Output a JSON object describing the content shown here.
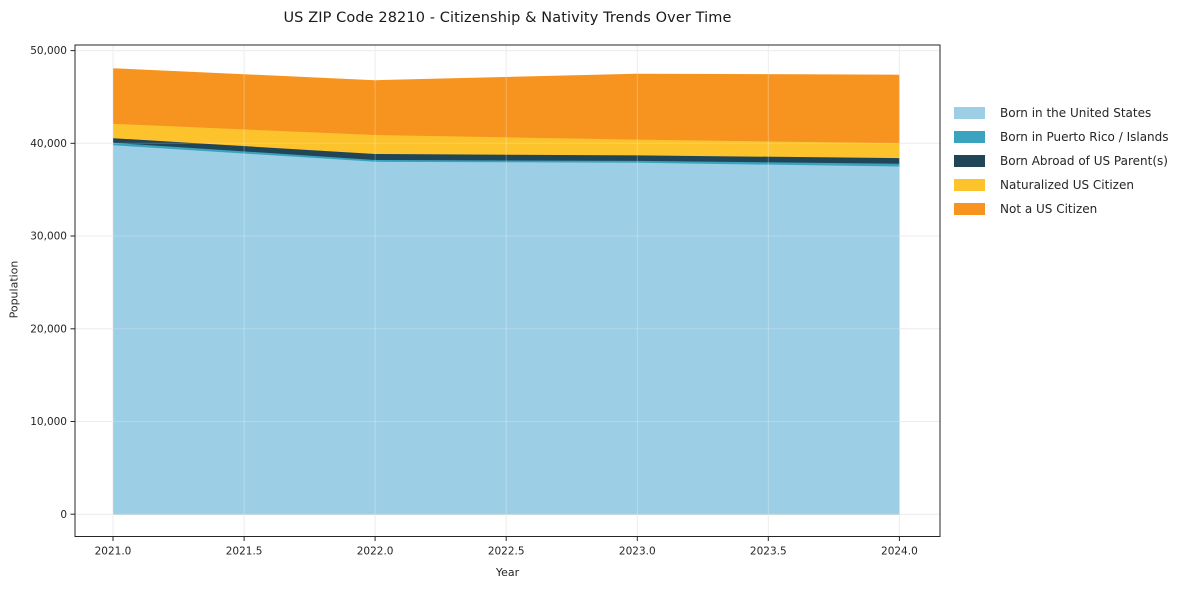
{
  "chart_data": {
    "type": "area",
    "stacked": true,
    "title": "US ZIP Code 28210 - Citizenship & Nativity Trends Over Time",
    "xlabel": "Year",
    "ylabel": "Population",
    "x": [
      2021,
      2022,
      2023,
      2024
    ],
    "series": [
      {
        "name": "Born in the United States",
        "color": "#9CCEE5",
        "values": [
          39800,
          38000,
          37900,
          37500
        ]
      },
      {
        "name": "Born in Puerto Rico / Islands",
        "color": "#39A3C0",
        "values": [
          250,
          200,
          200,
          300
        ]
      },
      {
        "name": "Born Abroad of US Parent(s)",
        "color": "#1F4557",
        "values": [
          500,
          650,
          600,
          600
        ]
      },
      {
        "name": "Naturalized US Citizen",
        "color": "#FCC32D",
        "values": [
          1550,
          2050,
          1700,
          1600
        ]
      },
      {
        "name": "Not a US Citizen",
        "color": "#F79420",
        "values": [
          6000,
          5900,
          7100,
          7400
        ]
      }
    ],
    "stacked_totals": [
      48100,
      46800,
      47500,
      47400
    ],
    "x_ticks": [
      2021.0,
      2021.5,
      2022.0,
      2022.5,
      2023.0,
      2023.5,
      2024.0
    ],
    "x_tick_labels": [
      "2021.0",
      "2021.5",
      "2022.0",
      "2022.5",
      "2023.0",
      "2023.5",
      "2024.0"
    ],
    "y_ticks": [
      0,
      10000,
      20000,
      30000,
      40000,
      50000
    ],
    "y_tick_labels": [
      "0",
      "10,000",
      "20,000",
      "30,000",
      "40,000",
      "50,000"
    ],
    "xlim": [
      2020.855,
      2024.155
    ],
    "ylim": [
      -2400,
      50600
    ],
    "grid": true,
    "legend_position": "outside-right"
  },
  "style": {
    "background": "#FFFFFF",
    "grid_color": "#E8E8E8",
    "spine_color": "#262626",
    "tick_text_color": "#262626"
  }
}
